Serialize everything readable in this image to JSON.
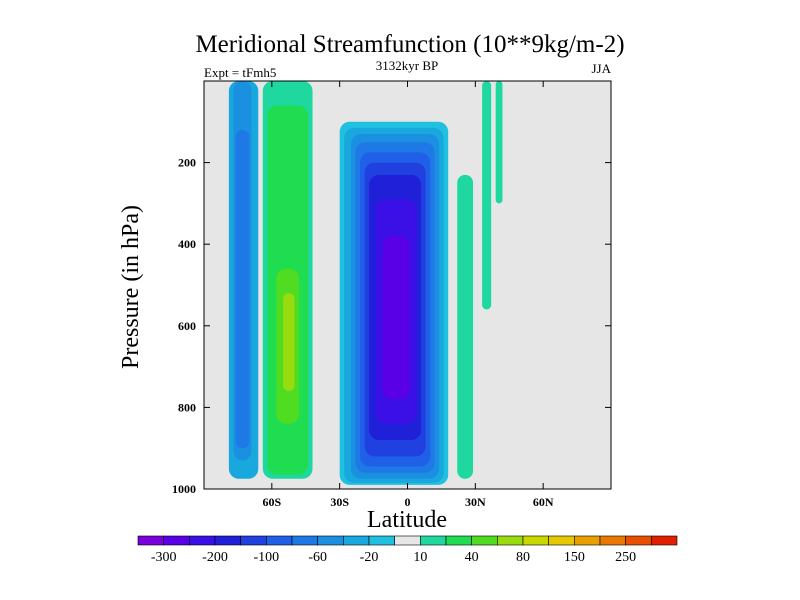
{
  "chart_data": {
    "type": "heatmap",
    "title": "Meridional Streamfunction (10**9kg/m-2)",
    "subtitle_left": "Expt = tFmh5",
    "subtitle_center": "3132kyr BP",
    "subtitle_right": "JJA",
    "xlabel": "Latitude",
    "ylabel": "Pressure (in hPa)",
    "xlim": [
      -90,
      90
    ],
    "ylim": [
      0,
      1000
    ],
    "y_inverted": true,
    "x_ticks": [
      {
        "value": -60,
        "label": "60S"
      },
      {
        "value": -30,
        "label": "30S"
      },
      {
        "value": 0,
        "label": "0"
      },
      {
        "value": 30,
        "label": "30N"
      },
      {
        "value": 60,
        "label": "60N"
      }
    ],
    "y_ticks": [
      {
        "value": 200,
        "label": "200"
      },
      {
        "value": 400,
        "label": "400"
      },
      {
        "value": 600,
        "label": "600"
      },
      {
        "value": 800,
        "label": "800"
      },
      {
        "value": 1000,
        "label": "1000"
      }
    ],
    "background_color": "#e6e6e6",
    "levels": [
      -300,
      -250,
      -200,
      -150,
      -100,
      -80,
      -60,
      -40,
      -20,
      -10,
      10,
      20,
      40,
      60,
      80,
      100,
      150,
      200,
      250,
      300
    ],
    "colors": [
      "#7a00dc",
      "#5a00e6",
      "#3a10e6",
      "#2020d8",
      "#2040e0",
      "#2060e8",
      "#1e78e6",
      "#1c90e0",
      "#18a8de",
      "#20c0e0",
      "#e6e6e6",
      "#1ed8a0",
      "#20dc50",
      "#50dc20",
      "#98dc10",
      "#c8d800",
      "#e6c800",
      "#e8a000",
      "#e87800",
      "#e85000",
      "#e02000"
    ],
    "colorbar_labels": [
      {
        "index": 1,
        "label": "-300"
      },
      {
        "index": 3,
        "label": "-200"
      },
      {
        "index": 5,
        "label": "-100"
      },
      {
        "index": 7,
        "label": "-60"
      },
      {
        "index": 9,
        "label": "-20"
      },
      {
        "index": 11,
        "label": "10"
      },
      {
        "index": 13,
        "label": "40"
      },
      {
        "index": 15,
        "label": "80"
      },
      {
        "index": 17,
        "label": "150"
      },
      {
        "index": 19,
        "label": "250"
      }
    ],
    "cells": [
      {
        "name": "sh-outer-blue",
        "lat": [
          -79,
          -66
        ],
        "p": [
          0,
          975
        ],
        "fill": "#18a8de"
      },
      {
        "name": "sh-outer-core",
        "lat": [
          -77,
          -69
        ],
        "p": [
          0,
          930
        ],
        "fill": "#1c90e0"
      },
      {
        "name": "sh-outer-inner",
        "lat": [
          -76,
          -70
        ],
        "p": [
          120,
          900
        ],
        "fill": "#1e78e6"
      },
      {
        "name": "sh-green-cell",
        "lat": [
          -64,
          -42
        ],
        "p": [
          0,
          975
        ],
        "fill": "#1ed8a0"
      },
      {
        "name": "sh-green-core",
        "lat": [
          -62,
          -44
        ],
        "p": [
          60,
          965
        ],
        "fill": "#20dc50"
      },
      {
        "name": "sh-lime-core",
        "lat": [
          -58,
          -48
        ],
        "p": [
          460,
          840
        ],
        "fill": "#50dc20"
      },
      {
        "name": "sh-lime-inner",
        "lat": [
          -55,
          -50
        ],
        "p": [
          520,
          760
        ],
        "fill": "#98dc10"
      },
      {
        "name": "hadley-outer",
        "lat": [
          -30,
          18
        ],
        "p": [
          100,
          990
        ],
        "fill": "#20c0e0"
      },
      {
        "name": "hadley-l1",
        "lat": [
          -28,
          16
        ],
        "p": [
          115,
          985
        ],
        "fill": "#18a8de"
      },
      {
        "name": "hadley-l2",
        "lat": [
          -25,
          14
        ],
        "p": [
          130,
          975
        ],
        "fill": "#1c90e0"
      },
      {
        "name": "hadley-l3",
        "lat": [
          -23,
          12
        ],
        "p": [
          150,
          960
        ],
        "fill": "#1e78e6"
      },
      {
        "name": "hadley-l4",
        "lat": [
          -21,
          10
        ],
        "p": [
          175,
          945
        ],
        "fill": "#2060e8"
      },
      {
        "name": "hadley-l5",
        "lat": [
          -19,
          8
        ],
        "p": [
          200,
          920
        ],
        "fill": "#2040e0"
      },
      {
        "name": "hadley-l6",
        "lat": [
          -17,
          6
        ],
        "p": [
          230,
          880
        ],
        "fill": "#2020d8"
      },
      {
        "name": "hadley-l7",
        "lat": [
          -14,
          4
        ],
        "p": [
          290,
          840
        ],
        "fill": "#3a10e6"
      },
      {
        "name": "hadley-core",
        "lat": [
          -11,
          1
        ],
        "p": [
          380,
          780
        ],
        "fill": "#5a00e6"
      },
      {
        "name": "nh-green-column",
        "lat": [
          22,
          29
        ],
        "p": [
          230,
          975
        ],
        "fill": "#1ed8a0"
      },
      {
        "name": "nh-upper-column",
        "lat": [
          33,
          37
        ],
        "p": [
          0,
          560
        ],
        "fill": "#1ed8a0"
      },
      {
        "name": "nh-upper-column-2",
        "lat": [
          39,
          42
        ],
        "p": [
          0,
          300
        ],
        "fill": "#1ed8a0"
      }
    ]
  }
}
